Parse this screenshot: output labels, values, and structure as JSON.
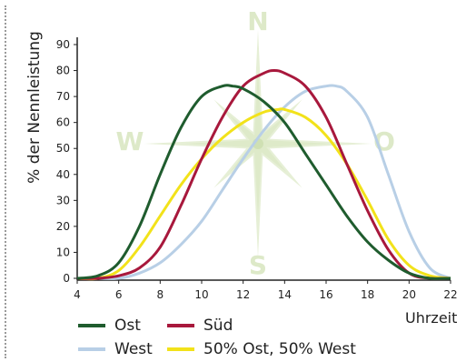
{
  "chart_data": {
    "type": "line",
    "xlabel": "Uhrzeit",
    "ylabel": "% der Nennleistung",
    "xlim": [
      4,
      22
    ],
    "ylim": [
      0,
      90
    ],
    "x_ticks": [
      "4",
      "6",
      "8",
      "10",
      "12",
      "14",
      "16",
      "18",
      "20",
      "22"
    ],
    "y_ticks": [
      "0",
      "10",
      "20",
      "30",
      "40",
      "50",
      "60",
      "70",
      "80",
      "90"
    ],
    "grid": false,
    "legend_position": "bottom",
    "series": [
      {
        "name": "Ost",
        "color": "#1f5c2e",
        "x": [
          4,
          5,
          6,
          7,
          8,
          9,
          10,
          11,
          11.5,
          12,
          13,
          14,
          15,
          16,
          17,
          18,
          19,
          20,
          21,
          22
        ],
        "y": [
          0,
          1,
          6,
          20,
          40,
          58,
          70,
          74,
          74,
          73,
          68,
          60,
          48,
          36,
          24,
          14,
          7,
          2,
          0,
          0
        ]
      },
      {
        "name": "Süd",
        "color": "#a8183c",
        "x": [
          4,
          5,
          6,
          7,
          8,
          9,
          10,
          11,
          12,
          13,
          13.5,
          14,
          15,
          16,
          17,
          18,
          19,
          20,
          21,
          22
        ],
        "y": [
          0,
          0,
          1,
          4,
          12,
          28,
          46,
          62,
          74,
          79,
          80,
          79,
          74,
          62,
          44,
          26,
          11,
          2,
          0,
          0
        ]
      },
      {
        "name": "West",
        "color": "#b8cfe6",
        "x": [
          4,
          5,
          6,
          7,
          8,
          9,
          10,
          11,
          12,
          13,
          14,
          15,
          16,
          16.5,
          17,
          18,
          19,
          20,
          21,
          22
        ],
        "y": [
          0,
          0,
          0,
          2,
          6,
          13,
          22,
          34,
          46,
          57,
          66,
          72,
          74,
          74,
          72,
          62,
          40,
          18,
          4,
          0
        ]
      },
      {
        "name": "50% Ost, 50% West",
        "color": "#f2e21a",
        "x": [
          4,
          5,
          6,
          7,
          8,
          9,
          10,
          11,
          12,
          13,
          13.7,
          14,
          15,
          16,
          17,
          18,
          19,
          20,
          21,
          22
        ],
        "y": [
          0,
          0,
          3,
          12,
          24,
          36,
          46,
          54,
          60,
          64,
          65,
          65,
          62,
          55,
          44,
          30,
          15,
          5,
          1,
          0
        ]
      }
    ]
  },
  "compass": {
    "north": "N",
    "east": "O",
    "south": "S",
    "west": "W",
    "color": "#dde9c8"
  }
}
